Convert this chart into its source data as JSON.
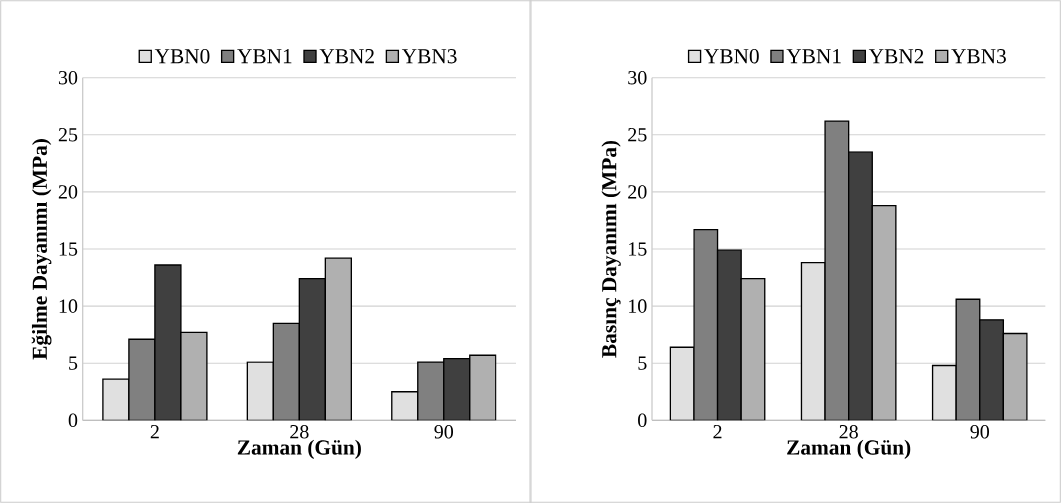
{
  "chart_data": [
    {
      "type": "bar",
      "categories": [
        "2",
        "28",
        "90"
      ],
      "xlabel": "Zaman (Gün)",
      "ylabel": "Eğilme Dayanımı (MPa)",
      "ylim": [
        0,
        30
      ],
      "yticks": [
        0,
        5,
        10,
        15,
        20,
        25,
        30
      ],
      "grid": "y",
      "legend": "top",
      "series": [
        {
          "name": "YBN0",
          "color": "#e0e0e0",
          "values": [
            3.6,
            5.1,
            2.5
          ]
        },
        {
          "name": "YBN1",
          "color": "#808080",
          "values": [
            7.1,
            8.5,
            5.1
          ]
        },
        {
          "name": "YBN2",
          "color": "#404040",
          "values": [
            13.6,
            12.4,
            5.4
          ]
        },
        {
          "name": "YBN3",
          "color": "#b0b0b0",
          "values": [
            7.7,
            14.2,
            5.7
          ]
        }
      ]
    },
    {
      "type": "bar",
      "categories": [
        "2",
        "28",
        "90"
      ],
      "xlabel": "Zaman (Gün)",
      "ylabel": "Basınç Dayanımı (MPa)",
      "ylim": [
        0,
        30
      ],
      "yticks": [
        0,
        5,
        10,
        15,
        20,
        25,
        30
      ],
      "grid": "y",
      "legend": "top",
      "series": [
        {
          "name": "YBN0",
          "color": "#e0e0e0",
          "values": [
            6.4,
            13.8,
            4.8
          ]
        },
        {
          "name": "YBN1",
          "color": "#808080",
          "values": [
            16.7,
            26.2,
            10.6
          ]
        },
        {
          "name": "YBN2",
          "color": "#404040",
          "values": [
            14.9,
            23.5,
            8.8
          ]
        },
        {
          "name": "YBN3",
          "color": "#b0b0b0",
          "values": [
            12.4,
            18.8,
            7.6
          ]
        }
      ]
    }
  ]
}
